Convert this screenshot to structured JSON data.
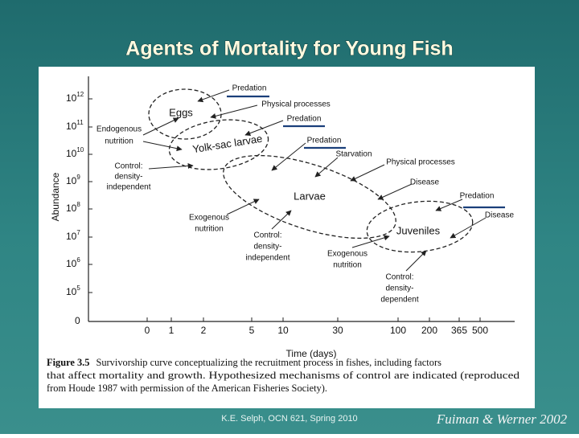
{
  "title": "Agents of Mortality for Young Fish",
  "figure": {
    "y_axis": {
      "label": "Abundance",
      "ticks": [
        {
          "base": "10",
          "exp": "12"
        },
        {
          "base": "10",
          "exp": "11"
        },
        {
          "base": "10",
          "exp": "10"
        },
        {
          "base": "10",
          "exp": "9"
        },
        {
          "base": "10",
          "exp": "8"
        },
        {
          "base": "10",
          "exp": "7"
        },
        {
          "base": "10",
          "exp": "6"
        },
        {
          "base": "10",
          "exp": "5"
        },
        {
          "base": "0",
          "exp": ""
        }
      ]
    },
    "x_axis": {
      "label": "Time (days)",
      "ticks": [
        "0",
        "1",
        "2",
        "5",
        "10",
        "30",
        "100",
        "200",
        "365",
        "500"
      ]
    },
    "stages": [
      "Eggs",
      "Yolk-sac larvae",
      "Larvae",
      "Juveniles"
    ],
    "agents": [
      {
        "lines": [
          "Predation"
        ]
      },
      {
        "lines": [
          "Physical processes"
        ]
      },
      {
        "lines": [
          "Predation"
        ]
      },
      {
        "lines": [
          "Endogenous",
          "nutrition"
        ]
      },
      {
        "lines": [
          "Predation"
        ]
      },
      {
        "lines": [
          "Starvation"
        ]
      },
      {
        "lines": [
          "Physical processes"
        ]
      },
      {
        "lines": [
          "Control:",
          "density-",
          "independent"
        ]
      },
      {
        "lines": [
          "Disease"
        ]
      },
      {
        "lines": [
          "Predation"
        ]
      },
      {
        "lines": [
          "Disease"
        ]
      },
      {
        "lines": [
          "Exogenous",
          "nutrition"
        ]
      },
      {
        "lines": [
          "Control:",
          "density-",
          "independent"
        ]
      },
      {
        "lines": [
          "Exogenous",
          "nutrition"
        ]
      },
      {
        "lines": [
          "Control:",
          "density-",
          "dependent"
        ]
      }
    ],
    "caption": {
      "label": "Figure 3.5",
      "lines": [
        "Survivorship curve conceptualizing the recruitment process in fishes, including factors",
        "that affect mortality and growth. Hypothesized mechanisms of control are indicated (reproduced",
        "from Houde 1987 with permission of the American Fisheries Society)."
      ]
    }
  },
  "footer": "K.E. Selph, OCN 621, Spring 2010",
  "credit": "Fuiman & Werner 2002"
}
